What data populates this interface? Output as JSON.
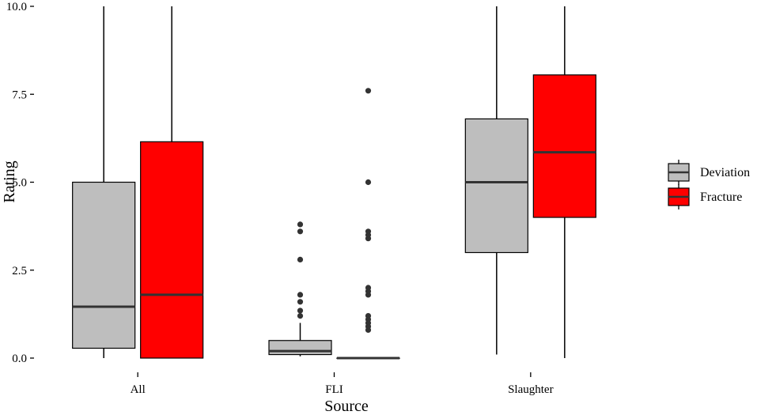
{
  "chart_data": {
    "type": "boxplot",
    "title": "",
    "xlabel": "Source",
    "ylabel": "Rating",
    "ylim": [
      0,
      10
    ],
    "yticks": [
      0,
      2.5,
      5,
      7.5,
      10
    ],
    "ytick_labels": [
      "0.0",
      "2.5",
      "5.0",
      "7.5",
      "10.0"
    ],
    "categories": [
      "All",
      "FLI",
      "Slaughter"
    ],
    "grid": false,
    "legend_position": "right",
    "series": [
      {
        "name": "Deviation",
        "color": "#bebebe",
        "boxes": [
          {
            "whisker_low": 0.0,
            "q1": 0.28,
            "median": 1.46,
            "q3": 5.0,
            "whisker_high": 10.0,
            "outliers": []
          },
          {
            "whisker_low": 0.05,
            "q1": 0.1,
            "median": 0.2,
            "q3": 0.5,
            "whisker_high": 1.0,
            "outliers": [
              1.2,
              1.35,
              1.6,
              1.8,
              2.8,
              3.6,
              3.8
            ]
          },
          {
            "whisker_low": 0.1,
            "q1": 3.0,
            "median": 5.0,
            "q3": 6.8,
            "whisker_high": 10.0,
            "outliers": []
          }
        ]
      },
      {
        "name": "Fracture",
        "color": "#ff0000",
        "boxes": [
          {
            "whisker_low": 0.0,
            "q1": 0.0,
            "median": 1.8,
            "q3": 6.15,
            "whisker_high": 10.0,
            "outliers": []
          },
          {
            "whisker_low": 0.0,
            "q1": 0.0,
            "median": 0.0,
            "q3": 0.0,
            "whisker_high": 0.0,
            "outliers": [
              0.8,
              0.9,
              1.0,
              1.1,
              1.2,
              1.8,
              1.9,
              2.0,
              3.4,
              3.5,
              3.6,
              5.0,
              7.6
            ]
          },
          {
            "whisker_low": 0.0,
            "q1": 4.0,
            "median": 5.85,
            "q3": 8.05,
            "whisker_high": 10.0,
            "outliers": []
          }
        ]
      }
    ]
  }
}
